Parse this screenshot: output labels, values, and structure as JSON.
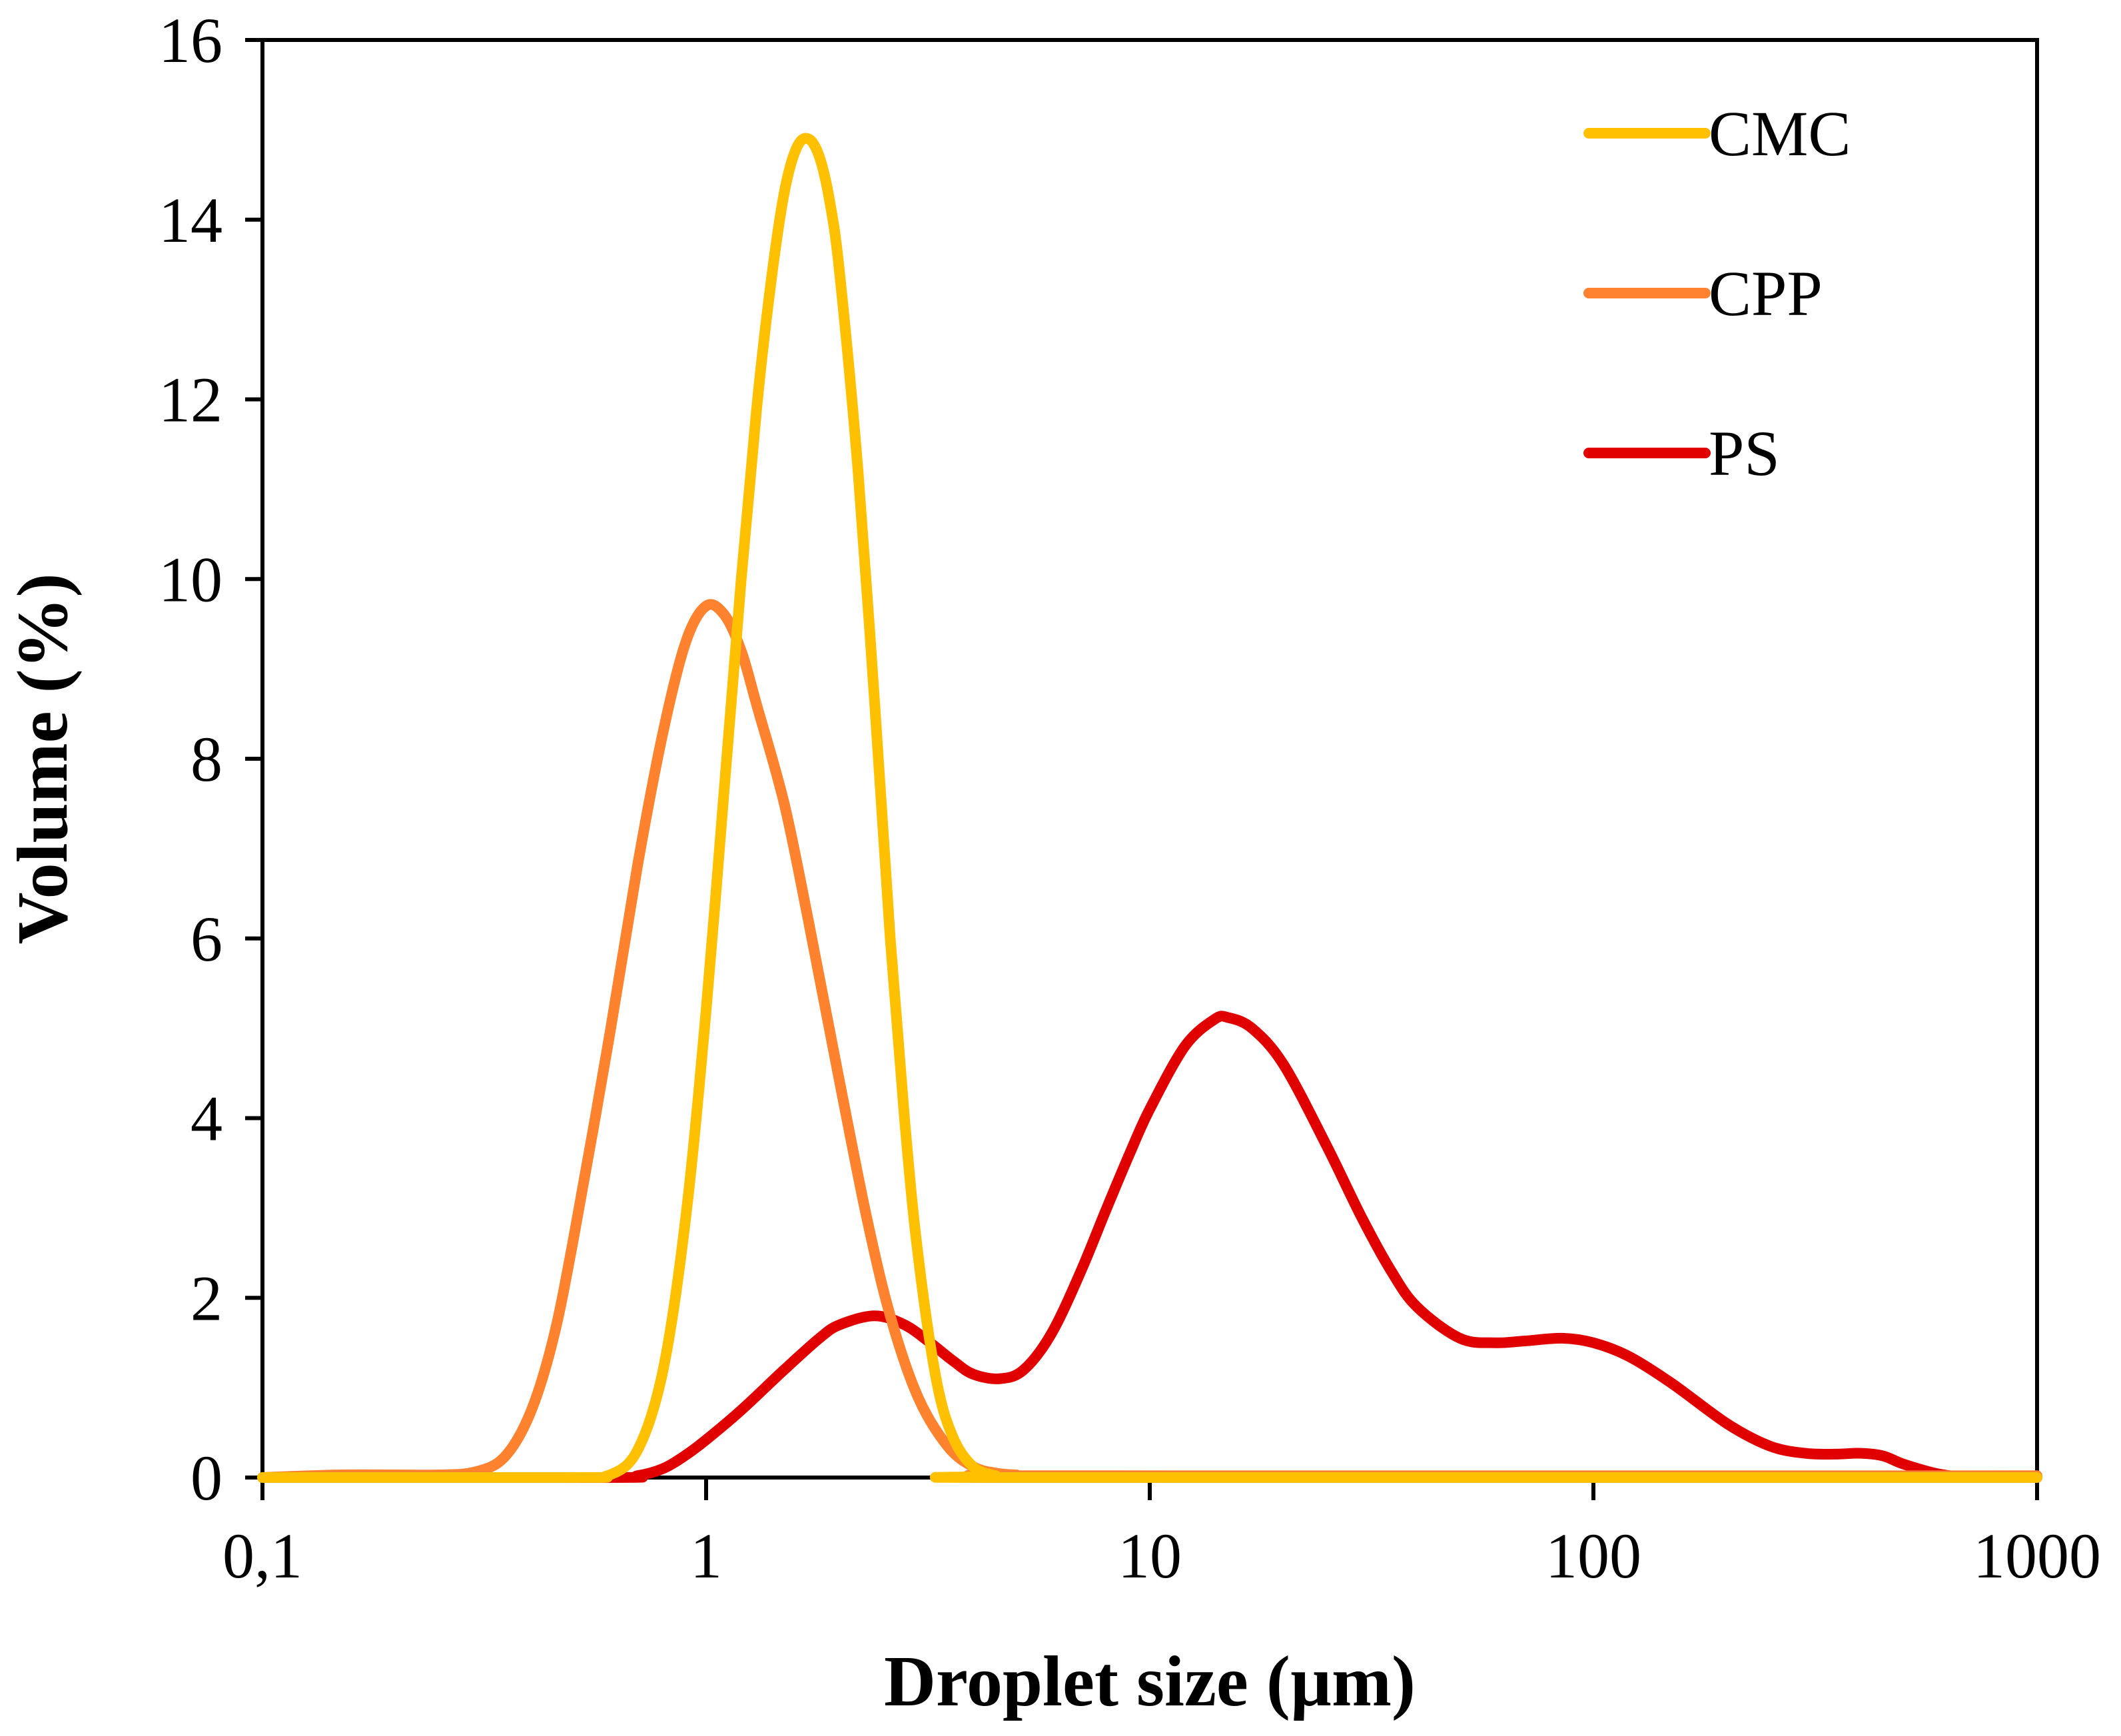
{
  "chart_data": {
    "type": "line",
    "title": "",
    "xlabel": "Droplet size (µm)",
    "ylabel": "Volume (%)",
    "xscale": "log",
    "xlim": [
      0.1,
      1000
    ],
    "ylim": [
      0,
      16
    ],
    "xticks": [
      0.1,
      1,
      10,
      100,
      1000
    ],
    "xtick_labels": [
      "0,1",
      "1",
      "10",
      "100",
      "1000"
    ],
    "yticks": [
      0,
      2,
      4,
      6,
      8,
      10,
      12,
      14,
      16
    ],
    "ytick_labels": [
      "0",
      "2",
      "4",
      "6",
      "8",
      "10",
      "12",
      "14",
      "16"
    ],
    "grid": false,
    "legend_position": "top-right",
    "series": [
      {
        "name": "CMC",
        "color": "#FFC000",
        "x": [
          0.1,
          0.5,
          0.6,
          0.7,
          0.8,
          0.9,
          1.0,
          1.1,
          1.2,
          1.3,
          1.4,
          1.5,
          1.6,
          1.7,
          1.8,
          1.9,
          2.0,
          2.2,
          2.4,
          2.6,
          2.8,
          3.0,
          3.3,
          3.6,
          4.0,
          4.5,
          5.0,
          1000
        ],
        "y": [
          0,
          0,
          0.02,
          0.3,
          1.2,
          2.9,
          5.2,
          7.7,
          10.0,
          11.9,
          13.3,
          14.3,
          14.8,
          14.9,
          14.7,
          14.2,
          13.4,
          11.2,
          8.6,
          6.0,
          4.0,
          2.5,
          1.1,
          0.45,
          0.12,
          0.02,
          0,
          0
        ]
      },
      {
        "name": "CPP",
        "color": "#FF822E",
        "x": [
          0.1,
          0.15,
          0.2,
          0.25,
          0.3,
          0.35,
          0.4,
          0.45,
          0.5,
          0.6,
          0.7,
          0.8,
          0.9,
          1.0,
          1.1,
          1.2,
          1.3,
          1.5,
          1.7,
          2.0,
          2.3,
          2.6,
          3.0,
          3.5,
          4.0,
          4.5,
          5.0,
          6.0,
          1000
        ],
        "y": [
          0,
          0.03,
          0.03,
          0.03,
          0.06,
          0.22,
          0.7,
          1.5,
          2.6,
          4.8,
          6.8,
          8.3,
          9.3,
          9.7,
          9.6,
          9.2,
          8.6,
          7.5,
          6.2,
          4.4,
          2.9,
          1.8,
          0.9,
          0.35,
          0.12,
          0.05,
          0.03,
          0.02,
          0.02
        ]
      },
      {
        "name": "PS",
        "color": "#E00000",
        "x": [
          0.1,
          0.6,
          0.7,
          0.8,
          0.9,
          1.0,
          1.2,
          1.5,
          1.8,
          2.0,
          2.4,
          2.8,
          3.2,
          3.6,
          4.0,
          4.6,
          5.2,
          6.0,
          7.0,
          8.0,
          9.0,
          10.0,
          12.0,
          14.0,
          15.0,
          17.0,
          20.0,
          25.0,
          30.0,
          35.0,
          40.0,
          50.0,
          60.0,
          70.0,
          85.0,
          100.0,
          120.0,
          150.0,
          200.0,
          250.0,
          300.0,
          350.0,
          400.0,
          450.0,
          500.0,
          600.0,
          700.0,
          1000.0
        ],
        "y": [
          0,
          0,
          0.02,
          0.1,
          0.25,
          0.42,
          0.75,
          1.2,
          1.55,
          1.7,
          1.8,
          1.7,
          1.5,
          1.3,
          1.15,
          1.1,
          1.2,
          1.6,
          2.3,
          3.0,
          3.6,
          4.1,
          4.8,
          5.1,
          5.12,
          5.0,
          4.6,
          3.7,
          2.9,
          2.3,
          1.9,
          1.55,
          1.5,
          1.52,
          1.55,
          1.5,
          1.35,
          1.05,
          0.6,
          0.35,
          0.27,
          0.26,
          0.27,
          0.24,
          0.15,
          0.04,
          0.01,
          0.0
        ]
      }
    ]
  }
}
